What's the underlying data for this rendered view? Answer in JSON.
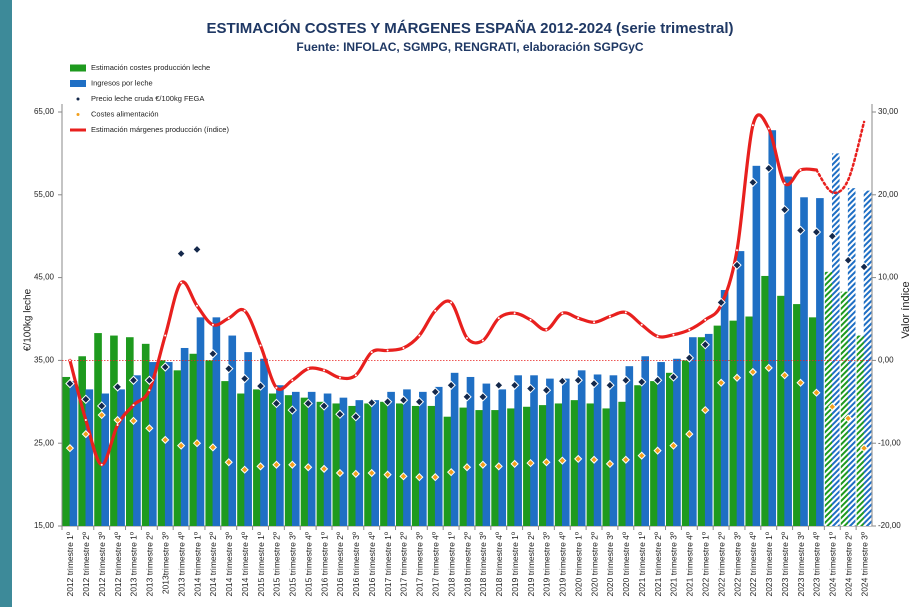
{
  "chart_data": {
    "type": "combo",
    "title": "ESTIMACIÓN COSTES Y MÁRGENES ESPAÑA 2012-2024 (serie trimestral)",
    "subtitle": "Fuente: INFOLAC, SGMPG, RENGRATI, elaboración SGPGyC",
    "ylabel": "€/100kg leche",
    "y2label": "Valor índice",
    "categories": [
      "2012 trimestre 1º",
      "2012 trimestre 2º",
      "2012 trimestre 3º",
      "2012 trimestre 4º",
      "2013 trimestre 1º",
      "2013 trimestre 2º",
      "2013trimestre 3º",
      "2013 trimestre 4º",
      "2014 trimestre 1º",
      "2014 trimestre 2º",
      "2014 trimestre 3º",
      "2014 trimestre 4º",
      "2015 trimestre 1º",
      "2015 trimestre 2º",
      "2015 trimestre 3º",
      "2015 trimestre 4º",
      "2016 trimestre 1º",
      "2016 trimestre 2º",
      "2016 trimestre 3º",
      "2016 trimestre 4º",
      "2017 trimestre 1º",
      "2017 trimestre 2º",
      "2017 trimestre 3º",
      "2017 trimestre 4º",
      "2018 trimestre 1º",
      "2018 trimestre 2º",
      "2018 trimestre 3º",
      "2018 trimestre 4º",
      "2019 trimestre 1º",
      "2019 trimestre 2º",
      "2019 trimestre 3º",
      "2019 trimestre 4º",
      "2020 trimestre 1º",
      "2020 trimestre 2º",
      "2020 trimestre 3º",
      "2020 trimestre 4º",
      "2021 trimestre 1º",
      "2021 trimestre 2º",
      "2021 trimestre 3º",
      "2021 trimestre 4º",
      "2022 trimestre 1º",
      "2022 trimestre 2º",
      "2022 trimestre 3º",
      "2022 trimestre 4º",
      "2023 trimestre 1º",
      "2023 trimestre 2º",
      "2023 trimestre 3º",
      "2023 trimestre 4º",
      "2024 trimestre 1º",
      "2024 trimestre 2º",
      "2024 trimestre 3º"
    ],
    "series": [
      {
        "name": "Estimación costes producción leche",
        "type": "bar",
        "color": "#1e9a1e",
        "values": [
          33.0,
          35.5,
          38.3,
          38.0,
          37.8,
          37.0,
          35.0,
          33.8,
          35.8,
          35.0,
          32.5,
          31.0,
          31.5,
          31.0,
          30.8,
          30.5,
          30.0,
          29.8,
          29.5,
          29.8,
          30.0,
          29.8,
          29.5,
          29.5,
          28.2,
          29.3,
          29.0,
          29.0,
          29.2,
          29.4,
          29.6,
          29.8,
          30.2,
          29.8,
          29.2,
          30.0,
          32.0,
          32.5,
          33.5,
          35.0,
          37.8,
          39.2,
          39.8,
          40.3,
          45.2,
          42.8,
          41.8,
          40.2,
          45.7,
          43.3,
          38.0
        ]
      },
      {
        "name": "Ingresos por leche",
        "type": "bar",
        "color": "#1f6fc4",
        "values": [
          32.5,
          31.5,
          31.0,
          31.5,
          33.2,
          34.8,
          34.8,
          36.5,
          40.2,
          40.2,
          38.0,
          36.0,
          35.2,
          32.0,
          31.2,
          31.2,
          31.0,
          30.5,
          30.2,
          30.2,
          31.2,
          31.5,
          31.2,
          31.8,
          33.5,
          33.0,
          32.2,
          31.5,
          33.2,
          33.2,
          32.8,
          32.8,
          33.8,
          33.3,
          33.2,
          34.3,
          35.5,
          34.8,
          35.2,
          37.8,
          38.2,
          43.5,
          48.2,
          58.5,
          62.8,
          57.2,
          54.7,
          54.6,
          60.0,
          55.8,
          55.5
        ]
      },
      {
        "name": "Precio leche cruda  €/100kg FEGA",
        "type": "marker",
        "color": "#14284b",
        "values": [
          32.2,
          30.3,
          29.5,
          31.8,
          32.6,
          32.6,
          34.2,
          47.9,
          48.4,
          35.8,
          34.0,
          32.8,
          31.9,
          29.8,
          29.0,
          29.8,
          29.5,
          28.5,
          28.2,
          29.9,
          30.0,
          30.2,
          30.0,
          31.2,
          32.0,
          30.6,
          30.6,
          32.0,
          32.0,
          31.6,
          31.4,
          32.5,
          32.6,
          32.2,
          32.0,
          32.6,
          32.4,
          32.6,
          33.0,
          35.3,
          36.9,
          42.0,
          46.5,
          56.5,
          58.2,
          53.2,
          50.7,
          50.5,
          50.0,
          47.1,
          46.3
        ]
      },
      {
        "name": "Costes alimentación",
        "type": "marker",
        "color": "#f2a01c",
        "values": [
          24.4,
          26.1,
          28.4,
          27.8,
          27.7,
          26.8,
          25.4,
          24.7,
          25.0,
          24.5,
          22.7,
          21.8,
          22.2,
          22.4,
          22.4,
          22.1,
          21.9,
          21.4,
          21.3,
          21.4,
          21.2,
          21.0,
          20.9,
          20.9,
          21.5,
          22.1,
          22.4,
          22.2,
          22.5,
          22.6,
          22.7,
          22.9,
          23.1,
          23.0,
          22.5,
          23.0,
          23.5,
          24.1,
          24.7,
          26.1,
          29.0,
          32.3,
          32.9,
          33.6,
          34.1,
          33.2,
          32.3,
          31.1,
          29.4,
          28.0,
          24.4
        ]
      },
      {
        "name": "Estimación márgenes producción (índice)",
        "type": "line",
        "axis": "y2",
        "color": "#e8201e",
        "values": [
          0.0,
          -7.2,
          -12.6,
          -7.8,
          -5.4,
          -3.6,
          3.0,
          9.4,
          6.6,
          4.3,
          5.1,
          6.0,
          1.8,
          -3.3,
          -2.4,
          -1.0,
          -1.2,
          -2.1,
          -1.8,
          1.0,
          1.2,
          1.5,
          3.0,
          6.0,
          7.0,
          2.7,
          2.4,
          5.1,
          5.7,
          4.9,
          3.7,
          5.7,
          5.1,
          4.6,
          5.3,
          5.8,
          4.3,
          2.9,
          3.1,
          3.7,
          4.9,
          6.7,
          13.3,
          28.4,
          28.0,
          21.4,
          23.0,
          23.0,
          20.3,
          21.8,
          28.8
        ]
      }
    ],
    "projected_from": 48,
    "y2_reference": 0,
    "ylim": [
      15,
      65
    ],
    "yticks": [
      {
        "value": 15,
        "label": "15,00"
      },
      {
        "value": 25,
        "label": "25,00"
      },
      {
        "value": 35,
        "label": "35,00"
      },
      {
        "value": 45,
        "label": "45,00"
      },
      {
        "value": 55,
        "label": "55,00"
      },
      {
        "value": 65,
        "label": "65,00"
      }
    ],
    "y2lim": [
      -20,
      30
    ],
    "y2ticks": [
      {
        "value": -20,
        "label": "-20,00"
      },
      {
        "value": -10,
        "label": "-10,00"
      },
      {
        "value": 0,
        "label": "0,00"
      },
      {
        "value": 10,
        "label": "10,00"
      },
      {
        "value": 20,
        "label": "20,00"
      },
      {
        "value": 30,
        "label": "30,00"
      }
    ],
    "legend": "top-left"
  }
}
